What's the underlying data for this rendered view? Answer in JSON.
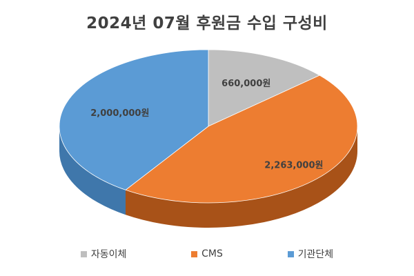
{
  "chart_data": {
    "type": "pie",
    "title": "2024년 07월 후원금 수입 구성비",
    "categories": [
      "자동이체",
      "CMS",
      "기관단체"
    ],
    "values": [
      660000,
      2263000,
      2000000
    ],
    "data_labels": [
      "660,000원",
      "2,263,000원",
      "2,000,000원"
    ],
    "colors": [
      "#bfbfbf",
      "#ed7d31",
      "#5b9bd5"
    ],
    "side_colors": [
      "#8a8a8a",
      "#a85218",
      "#3f77ab"
    ],
    "legend_position": "bottom",
    "style": "3d"
  }
}
